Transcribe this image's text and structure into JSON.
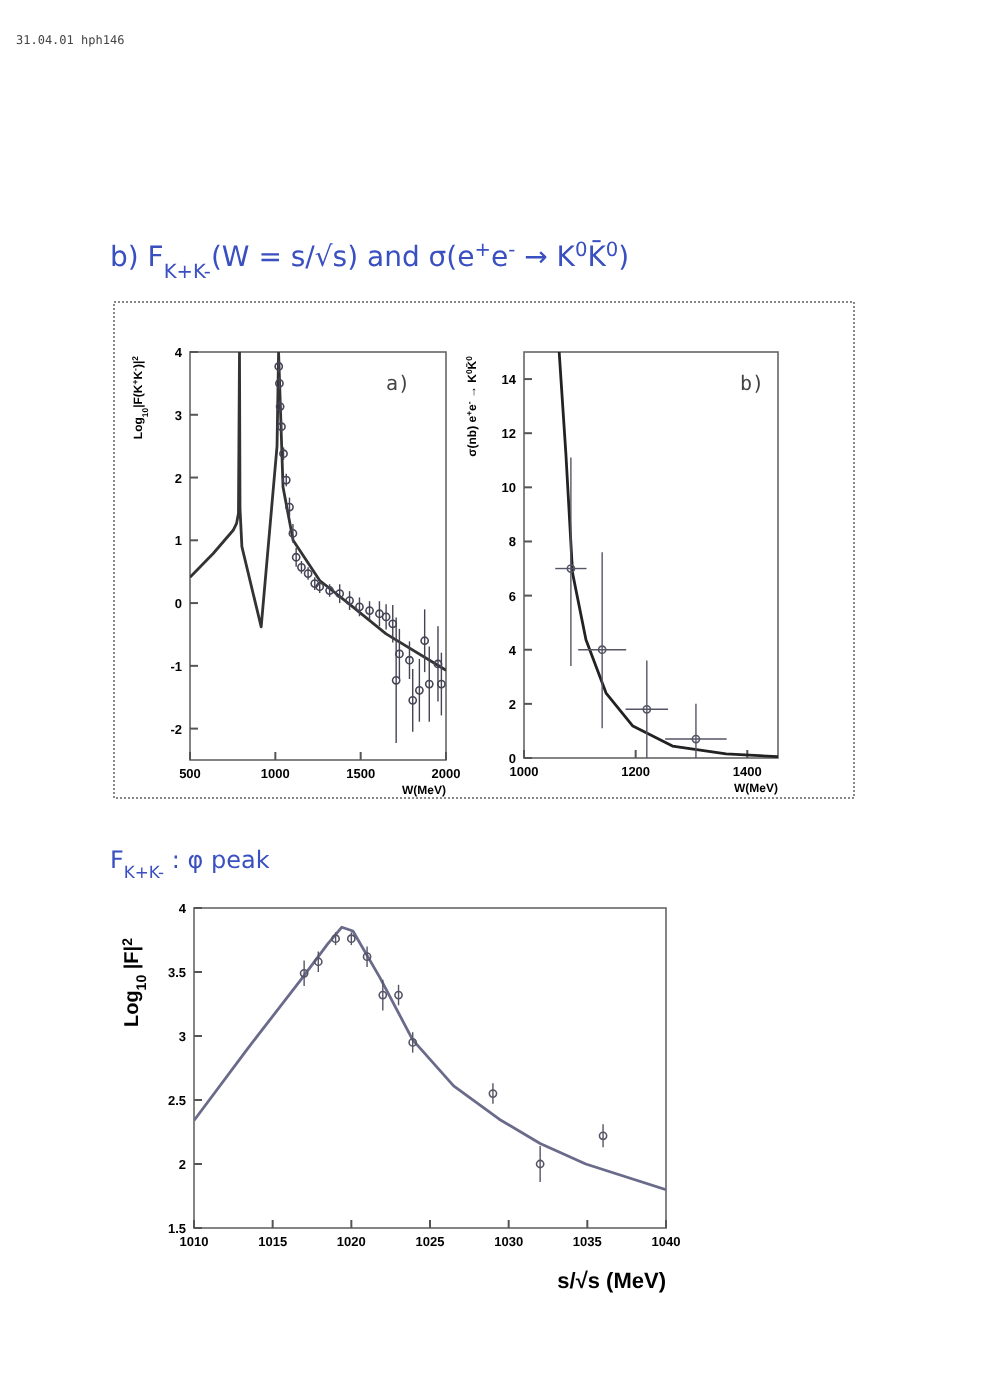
{
  "chart_data": [
    {
      "type": "line",
      "title": "b) F$_{K+K-}$(W = s/√s) and σ(e$^{+}$e$^{-}$ → K$^{0}$K̄$^{0}$)",
      "xlabel": "W(MeV)",
      "ylabel": "Log$_{10}$|F(K$^{+}$K$^{-}$)|$^{2}$",
      "xlim": [
        500,
        2000
      ],
      "ylim": [
        -2.5,
        4
      ],
      "xticks": [
        500,
        1000,
        1500,
        2000
      ],
      "yticks": [
        -2,
        -1,
        0,
        1,
        2,
        3,
        4
      ],
      "annotations": [
        "31.04.01 hph146",
        "a)"
      ],
      "series": [
        {
          "type": "line",
          "color": "#333333",
          "x": [
            500,
            636,
            753,
            773,
            784,
            790,
            793,
            804,
            917,
            1010,
            1019,
            1045,
            1104,
            1260,
            1454,
            1649,
            2000
          ],
          "values": [
            0.41,
            0.79,
            1.16,
            1.27,
            1.43,
            4,
            1.5,
            0.9,
            -0.38,
            2.5,
            4,
            1.85,
            1.0,
            0.36,
            -0.06,
            -0.49,
            -1.07
          ]
        },
        {
          "type": "scatter",
          "color": "#444455",
          "marker": "circle",
          "x": [
            1020,
            1024,
            1028,
            1036,
            1048,
            1064,
            1083,
            1103,
            1122,
            1153,
            1192,
            1231,
            1260,
            1318,
            1377,
            1435,
            1493,
            1552,
            1610,
            1649,
            1688,
            1708,
            1727,
            1786,
            1805,
            1844,
            1875,
            1902,
            1953,
            1973
          ],
          "values": [
            3.77,
            3.5,
            3.13,
            2.81,
            2.38,
            1.96,
            1.53,
            1.11,
            0.73,
            0.57,
            0.47,
            0.31,
            0.26,
            0.2,
            0.15,
            0.04,
            -0.06,
            -0.12,
            -0.17,
            -0.22,
            -0.33,
            -1.23,
            -0.81,
            -0.91,
            -1.55,
            -1.39,
            -0.6,
            -1.29,
            -0.97,
            -1.29
          ],
          "errors": [
            0.1,
            0.1,
            0.1,
            0.1,
            0.1,
            0.1,
            0.15,
            0.15,
            0.15,
            0.1,
            0.1,
            0.1,
            0.1,
            0.1,
            0.15,
            0.15,
            0.15,
            0.15,
            0.2,
            0.2,
            0.3,
            1.0,
            0.4,
            0.3,
            0.5,
            0.5,
            0.5,
            0.6,
            0.6,
            0.5
          ]
        }
      ]
    },
    {
      "type": "line",
      "xlabel": "W(MeV)",
      "ylabel": "σ(nb) e$^{+}$e$^{-}$ → K$^{0}$K̄$^{0}$",
      "xlim": [
        1000,
        1455
      ],
      "ylim": [
        0,
        15
      ],
      "xticks": [
        1000,
        1200,
        1400
      ],
      "yticks": [
        0,
        2,
        4,
        6,
        8,
        10,
        12,
        14
      ],
      "annotations": [
        "b)"
      ],
      "series": [
        {
          "type": "line",
          "color": "#222222",
          "x": [
            1063,
            1075,
            1087,
            1111,
            1147,
            1195,
            1266,
            1362,
            1455
          ],
          "values": [
            15,
            11.25,
            6.83,
            4.37,
            2.4,
            1.18,
            0.44,
            0.15,
            0.05
          ]
        },
        {
          "type": "scatter",
          "color": "#555566",
          "marker": "circle",
          "x": [
            1084,
            1140,
            1220,
            1308
          ],
          "values": [
            7.0,
            4.0,
            1.8,
            0.7
          ],
          "errors": [
            [
              3.4,
              11.1
            ],
            [
              1.1,
              7.6
            ],
            1.8,
            [
              0,
              2.0
            ]
          ],
          "xerrors": [
            28,
            43,
            38,
            55
          ]
        }
      ]
    },
    {
      "type": "line",
      "title": "F$_{K+K-}$ : φ peak",
      "xlabel": "s/√s (MeV)",
      "ylabel": "Log$_{10}$ |F|$^{2}$",
      "xlim": [
        1010,
        1040
      ],
      "ylim": [
        1.5,
        4
      ],
      "xticks": [
        1010,
        1015,
        1020,
        1025,
        1030,
        1035,
        1040
      ],
      "yticks": [
        1.5,
        2,
        2.5,
        3,
        3.5,
        4
      ],
      "series": [
        {
          "type": "line",
          "color": "#6a6a8a",
          "x": [
            1010,
            1013.4,
            1016.8,
            1018.5,
            1019.4,
            1020.1,
            1021.8,
            1023.9,
            1026.5,
            1029.4,
            1032,
            1034.9,
            1040
          ],
          "values": [
            2.34,
            2.9,
            3.44,
            3.72,
            3.85,
            3.82,
            3.46,
            2.97,
            2.61,
            2.35,
            2.16,
            2.0,
            1.8
          ]
        },
        {
          "type": "scatter",
          "color": "#555566",
          "marker": "circle",
          "x": [
            1017.0,
            1017.9,
            1019.0,
            1020.0,
            1021.0,
            1022.0,
            1023.0,
            1023.9,
            1029.0,
            1032.0,
            1036.0
          ],
          "values": [
            3.49,
            3.58,
            3.76,
            3.76,
            3.62,
            3.32,
            3.32,
            2.95,
            2.55,
            2.0,
            2.22
          ],
          "errors": [
            0.1,
            0.08,
            0.05,
            0.05,
            0.08,
            0.12,
            0.08,
            0.08,
            0.08,
            0.14,
            0.09
          ]
        }
      ]
    }
  ]
}
